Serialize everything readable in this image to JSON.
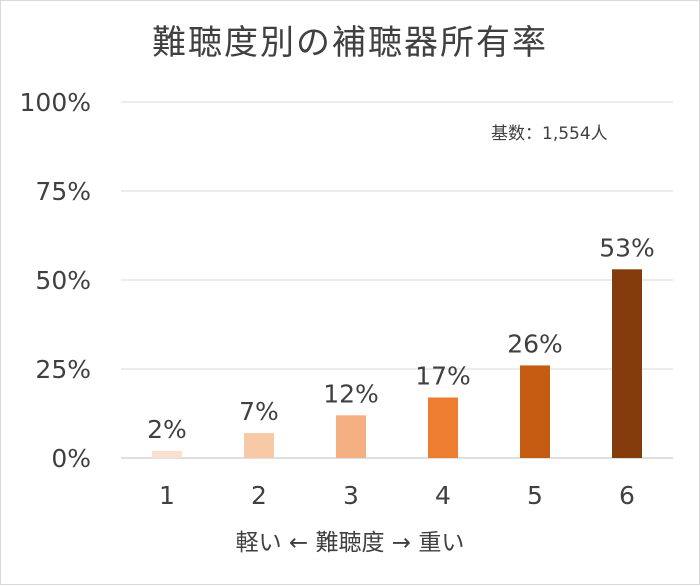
{
  "chart_data": {
    "type": "bar",
    "title": "難聴度別の補聴器所有率",
    "note": "基数：1,554人",
    "xlabel": "軽い ← 難聴度 → 重い",
    "ylabel": "",
    "categories": [
      "1",
      "2",
      "3",
      "4",
      "5",
      "6"
    ],
    "values": [
      2,
      7,
      12,
      17,
      26,
      53
    ],
    "value_labels": [
      "2%",
      "7%",
      "12%",
      "17%",
      "26%",
      "53%"
    ],
    "yticks": [
      0,
      25,
      50,
      75,
      100
    ],
    "ytick_labels": [
      "0%",
      "25%",
      "50%",
      "75%",
      "100%"
    ],
    "ylim": [
      0,
      100
    ],
    "grid": true,
    "legend": "none",
    "bar_colors": [
      "#fbe0d2",
      "#f7c9a6",
      "#f4b083",
      "#ed7d31",
      "#c55a11",
      "#843c0c"
    ],
    "colors": {
      "text": "#404040",
      "gridline": "#d9d9d9",
      "axis": "#bfbfbf"
    }
  }
}
